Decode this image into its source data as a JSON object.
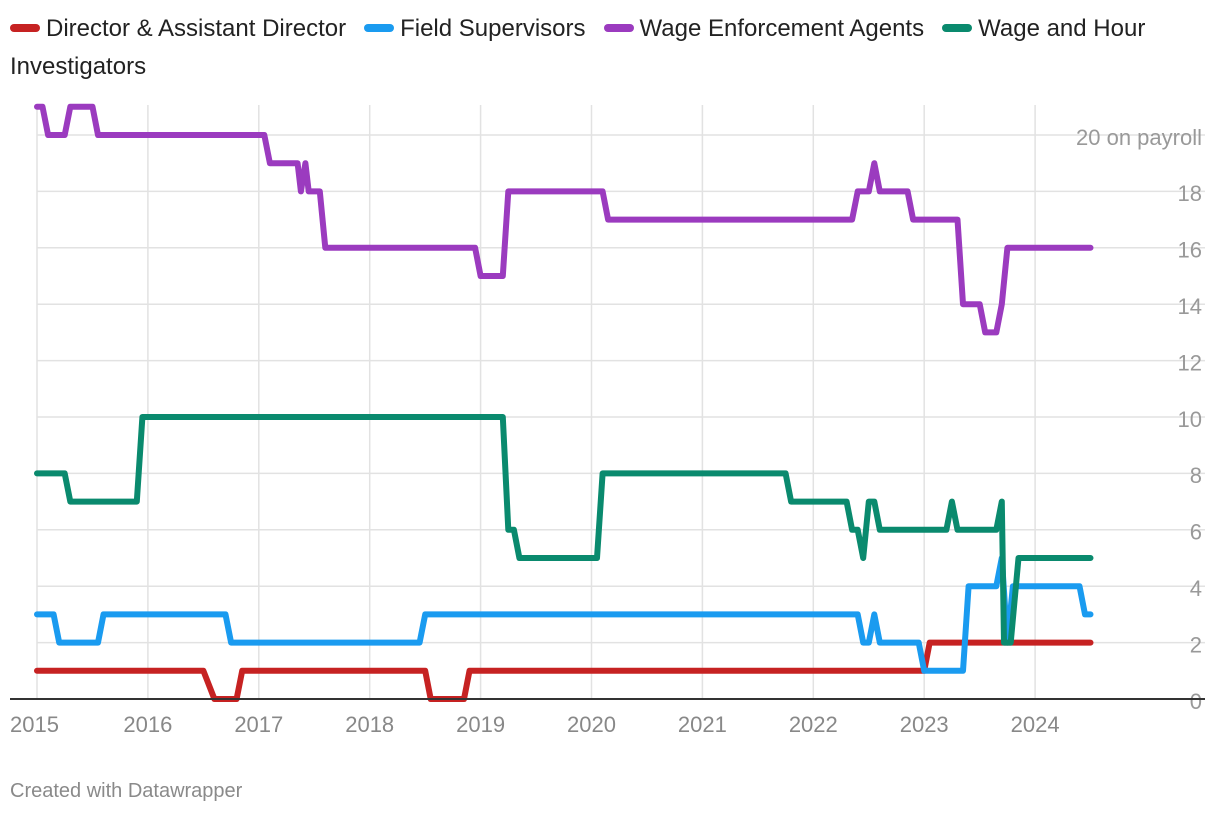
{
  "chart_data": {
    "type": "line",
    "title": "",
    "xlabel": "",
    "ylabel": "",
    "y_unit_label": "on payroll",
    "ylim": [
      0,
      20
    ],
    "y_ticks": [
      0,
      2,
      4,
      6,
      8,
      10,
      12,
      14,
      16,
      18,
      20
    ],
    "xlim": [
      2015,
      2025
    ],
    "x_ticks": [
      "2015",
      "2016",
      "2017",
      "2018",
      "2019",
      "2020",
      "2021",
      "2022",
      "2023",
      "2024"
    ],
    "grid": true,
    "legend_position": "top-left",
    "series": [
      {
        "name": "Director & Assistant Director",
        "color": "#c62222",
        "points": [
          [
            2015.0,
            1
          ],
          [
            2016.5,
            1
          ],
          [
            2016.6,
            0
          ],
          [
            2016.8,
            0
          ],
          [
            2016.85,
            1
          ],
          [
            2018.5,
            1
          ],
          [
            2018.55,
            0
          ],
          [
            2018.85,
            0
          ],
          [
            2018.9,
            1
          ],
          [
            2023.0,
            1
          ],
          [
            2023.05,
            2
          ],
          [
            2024.5,
            2
          ]
        ]
      },
      {
        "name": "Field Supervisors",
        "color": "#1a9bf0",
        "points": [
          [
            2015.0,
            3
          ],
          [
            2015.15,
            3
          ],
          [
            2015.2,
            2
          ],
          [
            2015.55,
            2
          ],
          [
            2015.6,
            3
          ],
          [
            2016.7,
            3
          ],
          [
            2016.75,
            2
          ],
          [
            2018.45,
            2
          ],
          [
            2018.5,
            3
          ],
          [
            2022.4,
            3
          ],
          [
            2022.45,
            2
          ],
          [
            2022.5,
            2
          ],
          [
            2022.55,
            3
          ],
          [
            2022.6,
            2
          ],
          [
            2022.95,
            2
          ],
          [
            2023.0,
            1
          ],
          [
            2023.35,
            1
          ],
          [
            2023.4,
            4
          ],
          [
            2023.65,
            4
          ],
          [
            2023.7,
            5
          ],
          [
            2023.75,
            2
          ],
          [
            2023.8,
            4
          ],
          [
            2024.4,
            4
          ],
          [
            2024.45,
            3
          ],
          [
            2024.5,
            3
          ]
        ]
      },
      {
        "name": "Wage Enforcement Agents",
        "color": "#9b3bbf",
        "points": [
          [
            2015.0,
            21
          ],
          [
            2015.05,
            21
          ],
          [
            2015.1,
            20
          ],
          [
            2015.25,
            20
          ],
          [
            2015.3,
            21
          ],
          [
            2015.5,
            21
          ],
          [
            2015.55,
            20
          ],
          [
            2017.05,
            20
          ],
          [
            2017.1,
            19
          ],
          [
            2017.35,
            19
          ],
          [
            2017.38,
            18
          ],
          [
            2017.42,
            19
          ],
          [
            2017.45,
            18
          ],
          [
            2017.55,
            18
          ],
          [
            2017.6,
            16
          ],
          [
            2018.95,
            16
          ],
          [
            2019.0,
            15
          ],
          [
            2019.2,
            15
          ],
          [
            2019.25,
            18
          ],
          [
            2020.1,
            18
          ],
          [
            2020.15,
            17
          ],
          [
            2022.35,
            17
          ],
          [
            2022.4,
            18
          ],
          [
            2022.5,
            18
          ],
          [
            2022.55,
            19
          ],
          [
            2022.6,
            18
          ],
          [
            2022.85,
            18
          ],
          [
            2022.9,
            17
          ],
          [
            2023.3,
            17
          ],
          [
            2023.35,
            14
          ],
          [
            2023.5,
            14
          ],
          [
            2023.55,
            13
          ],
          [
            2023.65,
            13
          ],
          [
            2023.7,
            14
          ],
          [
            2023.75,
            16
          ],
          [
            2024.5,
            16
          ]
        ]
      },
      {
        "name": "Wage and Hour Investigators",
        "color": "#0a8a6e",
        "points": [
          [
            2015.0,
            8
          ],
          [
            2015.25,
            8
          ],
          [
            2015.3,
            7
          ],
          [
            2015.9,
            7
          ],
          [
            2015.95,
            10
          ],
          [
            2019.2,
            10
          ],
          [
            2019.25,
            6
          ],
          [
            2019.3,
            6
          ],
          [
            2019.35,
            5
          ],
          [
            2020.05,
            5
          ],
          [
            2020.1,
            8
          ],
          [
            2021.75,
            8
          ],
          [
            2021.8,
            7
          ],
          [
            2022.3,
            7
          ],
          [
            2022.35,
            6
          ],
          [
            2022.4,
            6
          ],
          [
            2022.45,
            5
          ],
          [
            2022.5,
            7
          ],
          [
            2022.55,
            7
          ],
          [
            2022.6,
            6
          ],
          [
            2023.2,
            6
          ],
          [
            2023.25,
            7
          ],
          [
            2023.3,
            6
          ],
          [
            2023.65,
            6
          ],
          [
            2023.7,
            7
          ],
          [
            2023.72,
            2
          ],
          [
            2023.78,
            2
          ],
          [
            2023.85,
            5
          ],
          [
            2024.5,
            5
          ]
        ]
      }
    ]
  },
  "footer": {
    "credit": "Created with Datawrapper"
  }
}
